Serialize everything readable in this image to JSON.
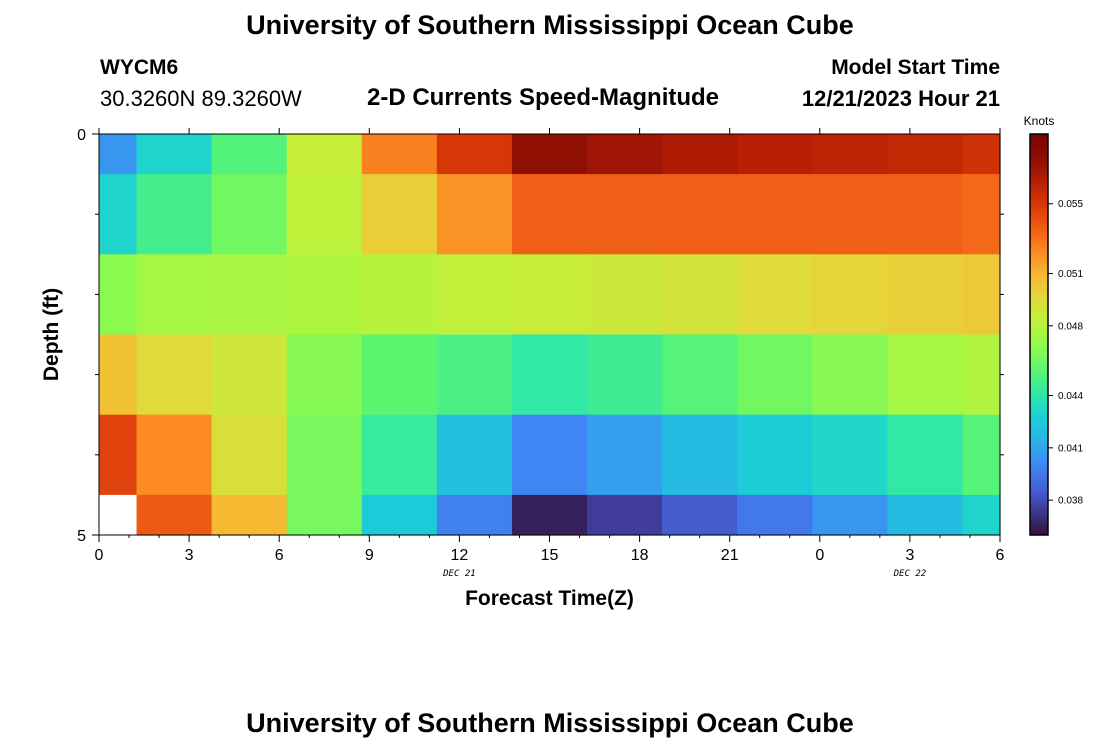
{
  "header": {
    "title": "University of Southern Mississippi Ocean Cube",
    "station_id": "WYCM6",
    "coordinates": "30.3260N  89.3260W",
    "subtitle": "2-D Currents Speed-Magnitude",
    "model_start_label": "Model Start Time",
    "model_start_value": "12/21/2023 Hour 21"
  },
  "footer": {
    "title": "University of Southern Mississippi Ocean Cube"
  },
  "colors": {
    "scale": [
      "#30123b",
      "#3e3891",
      "#4662d7",
      "#3f87f5",
      "#2ab3e6",
      "#1ad0d5",
      "#2fe7a8",
      "#5bf570",
      "#90fa4c",
      "#bef23a",
      "#e2d93a",
      "#f7b832",
      "#fb8a22",
      "#f05c15",
      "#d83807",
      "#b41e04",
      "#8c0d03",
      "#7a0403"
    ],
    "no_data": "#ffffff"
  },
  "chart_data": {
    "type": "heatmap",
    "title": "2-D Currents Speed-Magnitude",
    "xlabel": "Forecast Time(Z)",
    "ylabel": "Depth (ft)",
    "x_ticks": [
      "0",
      "3",
      "6",
      "9",
      "12",
      "15",
      "18",
      "21",
      "0",
      "3",
      "6"
    ],
    "x_tick_hours": [
      0,
      3,
      6,
      9,
      12,
      15,
      18,
      21,
      24,
      27,
      30
    ],
    "date_labels": [
      {
        "text": "DEC 21",
        "hour": 12
      },
      {
        "text": "DEC 22",
        "hour": 27
      }
    ],
    "xlim": [
      0,
      30
    ],
    "y_ticks": [
      "0",
      "5"
    ],
    "ylim": [
      0,
      5
    ],
    "column_edges_hours": [
      0,
      1.25,
      3.75,
      6.25,
      8.75,
      11.25,
      13.75,
      16.25,
      18.75,
      21.25,
      23.75,
      26.25,
      28.75,
      30
    ],
    "depth_edges_ft": [
      0,
      0.5,
      1.5,
      2.5,
      3.5,
      4.5,
      5
    ],
    "values": [
      [
        0.0405,
        0.043,
        0.0452,
        0.0485,
        0.0525,
        0.055,
        0.0575,
        0.057,
        0.0565,
        0.0562,
        0.056,
        0.0557,
        0.0553
      ],
      [
        0.043,
        0.0448,
        0.046,
        0.0482,
        0.05,
        0.052,
        0.0535,
        0.0535,
        0.0535,
        0.0535,
        0.0535,
        0.0535,
        0.0532
      ],
      [
        0.0467,
        0.0474,
        0.0476,
        0.0477,
        0.048,
        0.0483,
        0.0485,
        0.0487,
        0.049,
        0.0494,
        0.0497,
        0.0499,
        0.0502
      ],
      [
        0.0505,
        0.0495,
        0.0488,
        0.0466,
        0.0455,
        0.045,
        0.0442,
        0.0446,
        0.0453,
        0.046,
        0.0466,
        0.0474,
        0.0478
      ],
      [
        0.0545,
        0.0522,
        0.0492,
        0.0462,
        0.0444,
        0.042,
        0.04,
        0.0408,
        0.0418,
        0.0426,
        0.0432,
        0.0442,
        0.0453
      ],
      [
        null,
        0.0537,
        0.0508,
        0.0462,
        0.0425,
        0.0398,
        0.0365,
        0.0375,
        0.0385,
        0.0395,
        0.0405,
        0.0418,
        0.043
      ]
    ],
    "colorbar": {
      "title": "Knots",
      "min": 0.036,
      "max": 0.059,
      "tick_values": [
        0.038,
        0.041,
        0.044,
        0.048,
        0.051,
        0.055
      ],
      "tick_labels": [
        "0.038",
        "0.041",
        "0.044",
        "0.048",
        "0.051",
        "0.055"
      ]
    }
  }
}
